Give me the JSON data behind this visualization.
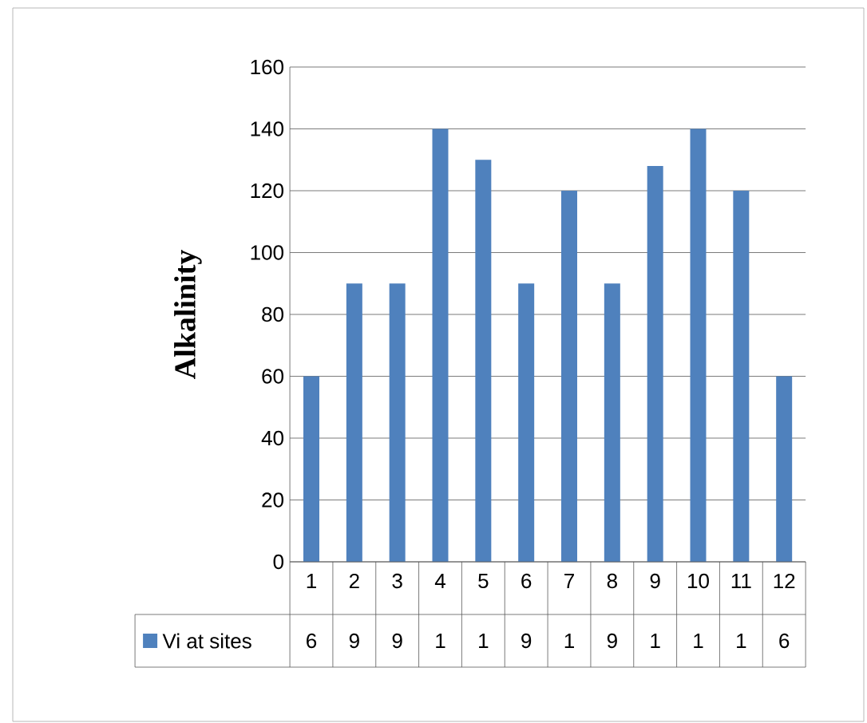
{
  "chart_data": {
    "type": "bar",
    "ylabel": "Alkalinity",
    "categories": [
      "1",
      "2",
      "3",
      "4",
      "5",
      "6",
      "7",
      "8",
      "9",
      "10",
      "11",
      "12"
    ],
    "series": [
      {
        "name": "Vi at sites",
        "color": "#4f81bd",
        "values": [
          60,
          90,
          90,
          140,
          130,
          90,
          120,
          90,
          128,
          140,
          120,
          60
        ]
      }
    ],
    "value_labels": [
      "6",
      "9",
      "9",
      "1",
      "1",
      "9",
      "1",
      "9",
      "1",
      "1",
      "1",
      "6"
    ],
    "ylim": [
      0,
      160
    ],
    "yticks": [
      0,
      20,
      40,
      60,
      80,
      100,
      120,
      140,
      160
    ],
    "grid": "y",
    "legend": "bottom"
  }
}
